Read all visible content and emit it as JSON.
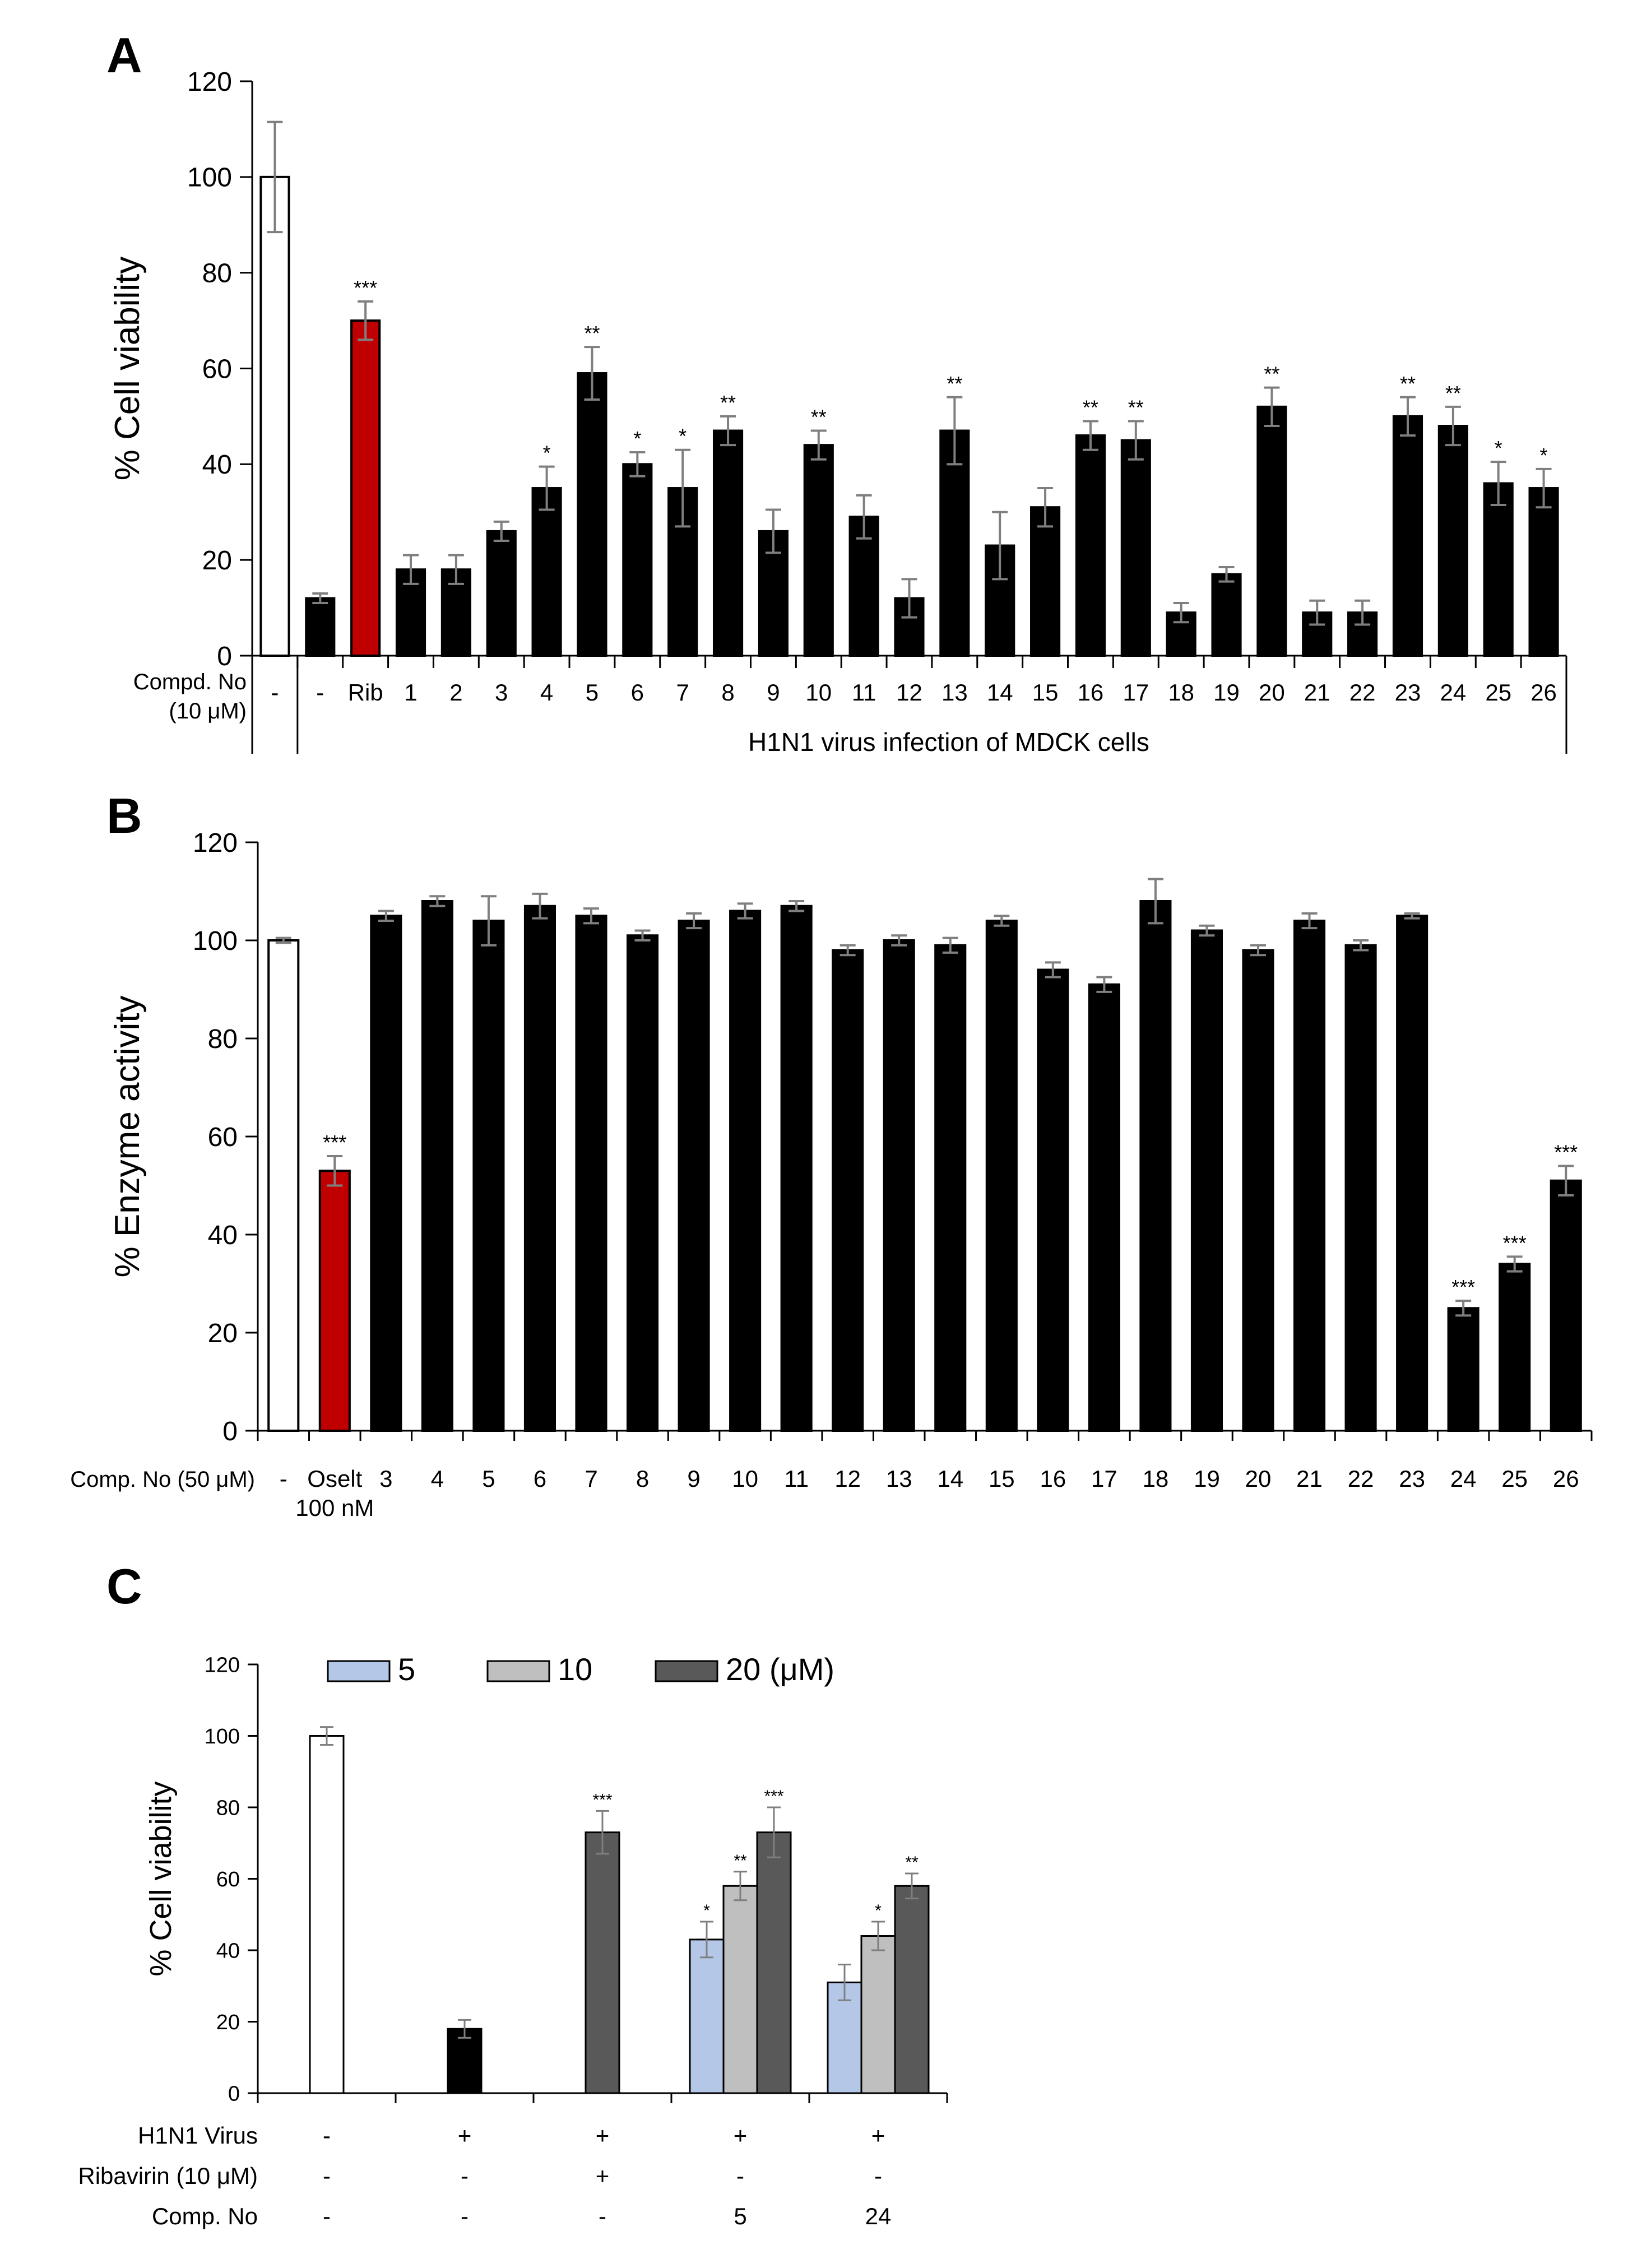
{
  "colors": {
    "white_bar": "#ffffff",
    "black_bar": "#000000",
    "red_bar": "#c00000",
    "c5": "#b4c7e7",
    "c10": "#bfbfbf",
    "c20": "#595959",
    "error": "#7f7f7f"
  },
  "chart_data": [
    {
      "panel": "A",
      "type": "bar",
      "ylabel": "% Cell viability",
      "ylim": [
        0,
        120
      ],
      "yticks": [
        "0",
        "20",
        "40",
        "60",
        "80",
        "100",
        "120"
      ],
      "row_label_line1": "Compd. No",
      "row_label_line2": "(10 μM)",
      "group_caption": "H1N1 virus infection of MDCK cells",
      "categories": [
        "-",
        "-",
        "Rib",
        "1",
        "2",
        "3",
        "4",
        "5",
        "6",
        "7",
        "8",
        "9",
        "10",
        "11",
        "12",
        "13",
        "14",
        "15",
        "16",
        "17",
        "18",
        "19",
        "20",
        "21",
        "22",
        "23",
        "24",
        "25",
        "26"
      ],
      "values": [
        100,
        12,
        70,
        18,
        18,
        26,
        35,
        59,
        40,
        35,
        47,
        26,
        44,
        29,
        12,
        47,
        23,
        31,
        46,
        45,
        9,
        17,
        52,
        9,
        9,
        50,
        48,
        36,
        35
      ],
      "errors": [
        11.5,
        1,
        4,
        3,
        3,
        2,
        4.5,
        5.5,
        2.5,
        8,
        3,
        4.5,
        3,
        4.5,
        4,
        7,
        7,
        4,
        3,
        4,
        2,
        1.5,
        4,
        2.5,
        2.5,
        4,
        4,
        4.5,
        4
      ],
      "significance": [
        "",
        "",
        "***",
        "",
        "",
        "",
        "*",
        "**",
        "*",
        "*",
        "**",
        "",
        "**",
        "",
        "",
        "**",
        "",
        "",
        "**",
        "**",
        "",
        "",
        "**",
        "",
        "",
        "**",
        "**",
        "*",
        "*"
      ],
      "bar_colors": [
        "white_bar",
        "black_bar",
        "red_bar",
        "black_bar",
        "black_bar",
        "black_bar",
        "black_bar",
        "black_bar",
        "black_bar",
        "black_bar",
        "black_bar",
        "black_bar",
        "black_bar",
        "black_bar",
        "black_bar",
        "black_bar",
        "black_bar",
        "black_bar",
        "black_bar",
        "black_bar",
        "black_bar",
        "black_bar",
        "black_bar",
        "black_bar",
        "black_bar",
        "black_bar",
        "black_bar",
        "black_bar",
        "black_bar"
      ]
    },
    {
      "panel": "B",
      "type": "bar",
      "ylabel": "% Enzyme activity",
      "ylim": [
        0,
        120
      ],
      "yticks": [
        "0",
        "20",
        "40",
        "60",
        "80",
        "100",
        "120"
      ],
      "row_label": "Comp. No (50 μM)",
      "categories": [
        "-",
        "Oselt",
        "3",
        "4",
        "5",
        "6",
        "7",
        "8",
        "9",
        "10",
        "11",
        "12",
        "13",
        "14",
        "15",
        "16",
        "17",
        "18",
        "19",
        "20",
        "21",
        "22",
        "23",
        "24",
        "25",
        "26"
      ],
      "category_sublabel": {
        "index": 1,
        "text": "100 nM"
      },
      "values": [
        100,
        53,
        105,
        108,
        104,
        107,
        105,
        101,
        104,
        106,
        107,
        98,
        100,
        99,
        104,
        94,
        91,
        108,
        102,
        98,
        104,
        99,
        105,
        25,
        34,
        51
      ],
      "errors": [
        0.5,
        3,
        1,
        1,
        5,
        2.5,
        1.5,
        1,
        1.5,
        1.5,
        1,
        1,
        1,
        1.5,
        1,
        1.5,
        1.5,
        4.5,
        1,
        1,
        1.5,
        1,
        0.5,
        1.5,
        1.5,
        3
      ],
      "significance": [
        "",
        "***",
        "",
        "",
        "",
        "",
        "",
        "",
        "",
        "",
        "",
        "",
        "",
        "",
        "",
        "",
        "",
        "",
        "",
        "",
        "",
        "",
        "",
        "***",
        "***",
        "***"
      ],
      "bar_colors": [
        "white_bar",
        "red_bar",
        "black_bar",
        "black_bar",
        "black_bar",
        "black_bar",
        "black_bar",
        "black_bar",
        "black_bar",
        "black_bar",
        "black_bar",
        "black_bar",
        "black_bar",
        "black_bar",
        "black_bar",
        "black_bar",
        "black_bar",
        "black_bar",
        "black_bar",
        "black_bar",
        "black_bar",
        "black_bar",
        "black_bar",
        "black_bar",
        "black_bar",
        "black_bar"
      ]
    },
    {
      "panel": "C",
      "type": "bar",
      "ylabel": "% Cell viability",
      "ylim": [
        0,
        120
      ],
      "yticks": [
        "0",
        "20",
        "40",
        "60",
        "80",
        "100",
        "120"
      ],
      "legend": [
        {
          "label": "5",
          "color": "c5"
        },
        {
          "label": "10",
          "color": "c10"
        },
        {
          "label": "20 (μM)",
          "color": "c20"
        }
      ],
      "groups": [
        {
          "bars": [
            {
              "value": 100,
              "error": 2.5,
              "sig": "",
              "color": "white_bar"
            }
          ]
        },
        {
          "bars": [
            {
              "value": 18,
              "error": 2.5,
              "sig": "",
              "color": "black_bar"
            }
          ]
        },
        {
          "bars": [
            {
              "value": 73,
              "error": 6,
              "sig": "***",
              "color": "c20"
            }
          ]
        },
        {
          "bars": [
            {
              "value": 43,
              "error": 5,
              "sig": "*",
              "color": "c5"
            },
            {
              "value": 58,
              "error": 4,
              "sig": "**",
              "color": "c10"
            },
            {
              "value": 73,
              "error": 7,
              "sig": "***",
              "color": "c20"
            }
          ]
        },
        {
          "bars": [
            {
              "value": 31,
              "error": 5,
              "sig": "",
              "color": "c5"
            },
            {
              "value": 44,
              "error": 4,
              "sig": "*",
              "color": "c10"
            },
            {
              "value": 58,
              "error": 3.5,
              "sig": "**",
              "color": "c20"
            }
          ]
        }
      ],
      "table_rows": [
        {
          "label": "H1N1 Virus",
          "cells": [
            "-",
            "+",
            "+",
            "+",
            "+"
          ]
        },
        {
          "label": "Ribavirin (10 μM)",
          "cells": [
            "-",
            "-",
            "+",
            "-",
            "-"
          ]
        },
        {
          "label": "Comp. No",
          "cells": [
            "-",
            "-",
            "-",
            "5",
            "24"
          ]
        }
      ]
    }
  ]
}
